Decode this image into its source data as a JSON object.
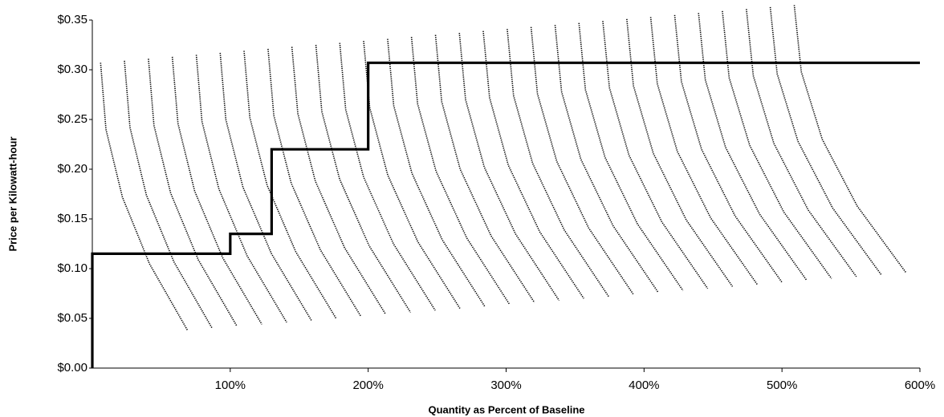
{
  "chart_data": {
    "type": "line",
    "x_label": "Quantity as Percent of Baseline",
    "y_label": "Price per Kilowatt-hour",
    "xlim": [
      0,
      600
    ],
    "xticks": [
      {
        "value": 100,
        "label": "100%"
      },
      {
        "value": 200,
        "label": "200%"
      },
      {
        "value": 300,
        "label": "300%"
      },
      {
        "value": 400,
        "label": "400%"
      },
      {
        "value": 500,
        "label": "500%"
      },
      {
        "value": 600,
        "label": "600%"
      }
    ],
    "ylim": [
      0,
      0.35
    ],
    "yticks": [
      {
        "value": 0,
        "label": "$0.00"
      },
      {
        "value": 0.05,
        "label": "$0.05"
      },
      {
        "value": 0.1,
        "label": "$0.10"
      },
      {
        "value": 0.15,
        "label": "$0.15"
      },
      {
        "value": 0.2,
        "label": "$0.20"
      },
      {
        "value": 0.25,
        "label": "$0.25"
      },
      {
        "value": 0.3,
        "label": "$0.30"
      },
      {
        "value": 0.35,
        "label": "$0.35"
      }
    ],
    "grid": "y",
    "series": [
      {
        "color": "#000000",
        "style": "dotted",
        "x": [
          6,
          9.9,
          21.8,
          41.4,
          69
        ],
        "values": [
          0.307,
          0.24,
          0.172,
          0.105,
          0.038
        ]
      },
      {
        "color": "#000000",
        "style": "dotted",
        "x": [
          23.3,
          27.3,
          39.2,
          59.1,
          86.9
        ],
        "values": [
          0.309,
          0.242,
          0.174,
          0.107,
          0.04
        ]
      },
      {
        "color": "#000000",
        "style": "dotted",
        "x": [
          40.7,
          44.7,
          56.8,
          76.8,
          104.9
        ],
        "values": [
          0.311,
          0.244,
          0.176,
          0.109,
          0.042
        ]
      },
      {
        "color": "#000000",
        "style": "dotted",
        "x": [
          58,
          62.1,
          74.2,
          94.5,
          122.9
        ],
        "values": [
          0.313,
          0.246,
          0.178,
          0.111,
          0.044
        ]
      },
      {
        "color": "#000000",
        "style": "dotted",
        "x": [
          75.4,
          79.5,
          91.8,
          112.2,
          140.9
        ],
        "values": [
          0.315,
          0.248,
          0.18,
          0.113,
          0.046
        ]
      },
      {
        "color": "#000000",
        "style": "dotted",
        "x": [
          92.7,
          96.8,
          109.2,
          129.9,
          158.8
        ],
        "values": [
          0.317,
          0.25,
          0.182,
          0.115,
          0.048
        ]
      },
      {
        "color": "#000000",
        "style": "dotted",
        "x": [
          110,
          114.2,
          126.7,
          147.5,
          176.7
        ],
        "values": [
          0.319,
          0.252,
          0.184,
          0.117,
          0.05
        ]
      },
      {
        "color": "#000000",
        "style": "dotted",
        "x": [
          127.4,
          131.6,
          144.2,
          165.3,
          194.7
        ],
        "values": [
          0.321,
          0.254,
          0.186,
          0.119,
          0.052
        ]
      },
      {
        "color": "#000000",
        "style": "dotted",
        "x": [
          144.7,
          149,
          161.7,
          182.9,
          212.7
        ],
        "values": [
          0.323,
          0.256,
          0.188,
          0.121,
          0.054
        ]
      },
      {
        "color": "#000000",
        "style": "dotted",
        "x": [
          162.1,
          166.4,
          179.3,
          200.7,
          230.7
        ],
        "values": [
          0.325,
          0.258,
          0.19,
          0.123,
          0.056
        ]
      },
      {
        "color": "#000000",
        "style": "dotted",
        "x": [
          179.4,
          183.7,
          196.7,
          218.3,
          248.6
        ],
        "values": [
          0.327,
          0.26,
          0.192,
          0.125,
          0.058
        ]
      },
      {
        "color": "#000000",
        "style": "dotted",
        "x": [
          196.7,
          201.1,
          214.2,
          236,
          266.5
        ],
        "values": [
          0.329,
          0.262,
          0.194,
          0.127,
          0.06
        ]
      },
      {
        "color": "#000000",
        "style": "dotted",
        "x": [
          214.1,
          218.5,
          231.7,
          253.7,
          284.5
        ],
        "values": [
          0.331,
          0.264,
          0.196,
          0.129,
          0.062
        ]
      },
      {
        "color": "#000000",
        "style": "dotted",
        "x": [
          231.4,
          235.8,
          249.2,
          271.4,
          302.5
        ],
        "values": [
          0.333,
          0.266,
          0.198,
          0.131,
          0.064
        ]
      },
      {
        "color": "#000000",
        "style": "dotted",
        "x": [
          248.8,
          253.3,
          266.7,
          289.1,
          320.5
        ],
        "values": [
          0.335,
          0.268,
          0.2,
          0.133,
          0.066
        ]
      },
      {
        "color": "#000000",
        "style": "dotted",
        "x": [
          266.1,
          270.6,
          284.2,
          306.8,
          338.4
        ],
        "values": [
          0.337,
          0.27,
          0.202,
          0.135,
          0.068
        ]
      },
      {
        "color": "#000000",
        "style": "dotted",
        "x": [
          283.4,
          288,
          301.6,
          324.4,
          356.3
        ],
        "values": [
          0.339,
          0.272,
          0.204,
          0.137,
          0.07
        ]
      },
      {
        "color": "#000000",
        "style": "dotted",
        "x": [
          300.8,
          305.4,
          319.2,
          342.1,
          374.3
        ],
        "values": [
          0.341,
          0.274,
          0.206,
          0.139,
          0.072
        ]
      },
      {
        "color": "#000000",
        "style": "dotted",
        "x": [
          318.1,
          322.7,
          336.7,
          359.8,
          392.3
        ],
        "values": [
          0.343,
          0.276,
          0.208,
          0.141,
          0.074
        ]
      },
      {
        "color": "#000000",
        "style": "dotted",
        "x": [
          335.5,
          340.2,
          354.2,
          377.6,
          410.3
        ],
        "values": [
          0.345,
          0.278,
          0.21,
          0.143,
          0.076
        ]
      },
      {
        "color": "#000000",
        "style": "dotted",
        "x": [
          352.8,
          357.5,
          371.7,
          395.2,
          428.2
        ],
        "values": [
          0.347,
          0.28,
          0.212,
          0.145,
          0.078
        ]
      },
      {
        "color": "#000000",
        "style": "dotted",
        "x": [
          370.1,
          374.9,
          389.1,
          412.9,
          446.1
        ],
        "values": [
          0.349,
          0.282,
          0.214,
          0.147,
          0.08
        ]
      },
      {
        "color": "#000000",
        "style": "dotted",
        "x": [
          387.5,
          392.3,
          406.7,
          430.6,
          464.1
        ],
        "values": [
          0.351,
          0.284,
          0.216,
          0.149,
          0.082
        ]
      },
      {
        "color": "#000000",
        "style": "dotted",
        "x": [
          404.8,
          409.6,
          424.1,
          448.3,
          482.1
        ],
        "values": [
          0.353,
          0.286,
          0.218,
          0.151,
          0.084
        ]
      },
      {
        "color": "#000000",
        "style": "dotted",
        "x": [
          422.2,
          427.1,
          441.7,
          466,
          500.1
        ],
        "values": [
          0.355,
          0.288,
          0.22,
          0.153,
          0.086
        ]
      },
      {
        "color": "#000000",
        "style": "dotted",
        "x": [
          439.5,
          444.4,
          459.1,
          483.7,
          518
        ],
        "values": [
          0.357,
          0.29,
          0.222,
          0.155,
          0.088
        ]
      },
      {
        "color": "#000000",
        "style": "dotted",
        "x": [
          456.8,
          461.7,
          476.6,
          501.3,
          535.9
        ],
        "values": [
          0.359,
          0.292,
          0.224,
          0.157,
          0.09
        ]
      },
      {
        "color": "#000000",
        "style": "dotted",
        "x": [
          474.2,
          479.2,
          494.1,
          519,
          553.9
        ],
        "values": [
          0.361,
          0.294,
          0.226,
          0.159,
          0.092
        ]
      },
      {
        "color": "#000000",
        "style": "dotted",
        "x": [
          491.5,
          496.5,
          511.6,
          536.7,
          571.9
        ],
        "values": [
          0.363,
          0.296,
          0.228,
          0.161,
          0.094
        ]
      },
      {
        "color": "#000000",
        "style": "dotted",
        "x": [
          508.9,
          514,
          529.2,
          554.5,
          589.9
        ],
        "values": [
          0.365,
          0.298,
          0.23,
          0.163,
          0.096
        ]
      },
      {
        "color": "#000000",
        "style": "solid",
        "x": [
          0,
          0,
          100,
          100,
          130,
          130,
          200,
          200,
          600
        ],
        "values": [
          0,
          0.115,
          0.115,
          0.135,
          0.135,
          0.22,
          0.22,
          0.307,
          0.307
        ]
      }
    ]
  }
}
